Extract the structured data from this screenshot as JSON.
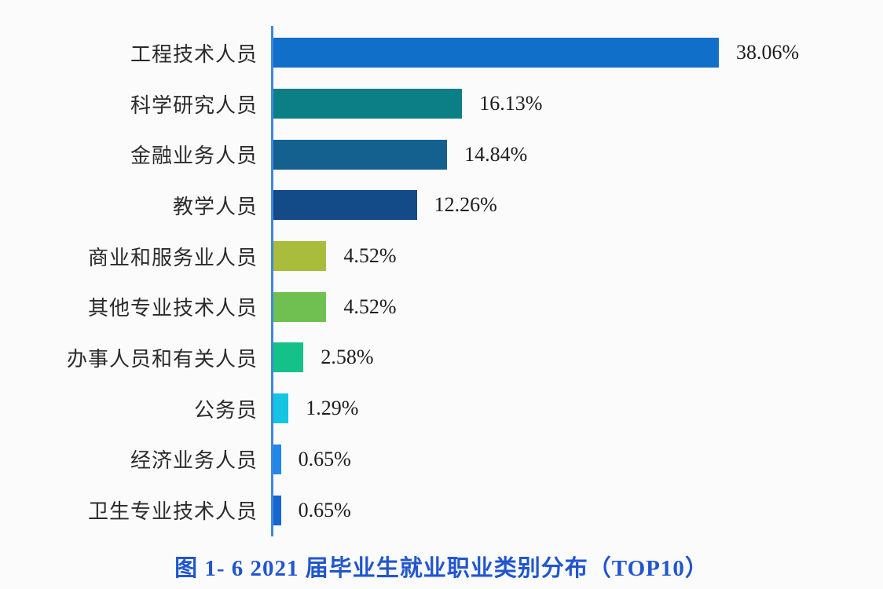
{
  "page": {
    "background": "#fbfbfc"
  },
  "caption": {
    "text": "图 1- 6 2021 届毕业生就业职业类别分布（TOP10）",
    "color": "#2156cf"
  },
  "chart_data": {
    "type": "bar",
    "orientation": "horizontal",
    "title": "图 1- 6 2021 届毕业生就业职业类别分布（TOP10）",
    "xlabel": "",
    "ylabel": "",
    "xlim": [
      0,
      40
    ],
    "grid": false,
    "legend": false,
    "categories": [
      "工程技术人员",
      "科学研究人员",
      "金融业务人员",
      "教学人员",
      "商业和服务业人员",
      "其他专业技术人员",
      "办事人员和有关人员",
      "公务员",
      "经济业务人员",
      "卫生专业技术人员"
    ],
    "values": [
      38.06,
      16.13,
      14.84,
      12.26,
      4.52,
      4.52,
      2.58,
      1.29,
      0.65,
      0.65
    ],
    "value_labels": [
      "38.06%",
      "16.13%",
      "14.84%",
      "12.26%",
      "4.52%",
      "4.52%",
      "2.58%",
      "1.29%",
      "0.65%",
      "0.65%"
    ],
    "bar_colors": [
      "#0f6fc9",
      "#0b7f85",
      "#14608f",
      "#134a88",
      "#a9bc3b",
      "#6fc050",
      "#14c189",
      "#13c5e2",
      "#1f88e8",
      "#1566d2"
    ],
    "axis_color": "#3e87da",
    "label_color": "#2b2b2b",
    "value_color": "#1d1d1d",
    "pixels_per_percent": 14.898
  }
}
